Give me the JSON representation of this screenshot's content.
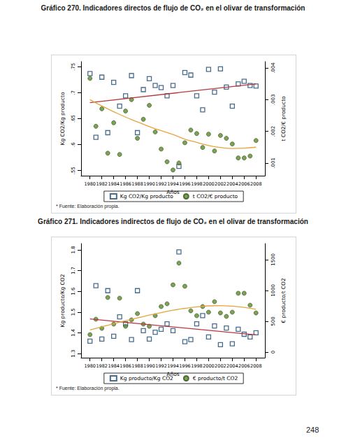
{
  "chart_data": [
    {
      "type": "scatter",
      "title": "Gráfico 270. Indicadores directos de flujo de CO₂ en el olivar de transformación",
      "note": "* Fuente: Elaboración propia.",
      "x_label": "Años",
      "y_label": "Kg CO2/Kg producto",
      "y2_label": "t CO2/€ producto",
      "x": [
        1980,
        1981,
        1982,
        1983,
        1984,
        1985,
        1986,
        1987,
        1988,
        1989,
        1990,
        1991,
        1992,
        1993,
        1994,
        1995,
        1996,
        1997,
        1998,
        1999,
        2000,
        2001,
        2002,
        2003,
        2004,
        2005,
        2006,
        2007,
        2008
      ],
      "xlim": [
        1978.5,
        2009.5
      ],
      "xticks": [
        1980,
        1982,
        1984,
        1986,
        1988,
        1990,
        1992,
        1994,
        1996,
        1998,
        2000,
        2002,
        2004,
        2006,
        2008
      ],
      "ylim": [
        0.54,
        0.76
      ],
      "yticks": [
        {
          "value": 0.55,
          "label": ".55"
        },
        {
          "value": 0.6,
          "label": ".6"
        },
        {
          "value": 0.65,
          "label": ".65"
        },
        {
          "value": 0.7,
          "label": ".7"
        },
        {
          "value": 0.75,
          "label": ".75"
        }
      ],
      "y2lim": [
        0.0006,
        0.0042
      ],
      "y2ticks": [
        {
          "value": 0.001,
          "label": ".001"
        },
        {
          "value": 0.002,
          "label": ".002"
        },
        {
          "value": 0.003,
          "label": ".003"
        },
        {
          "value": 0.004,
          "label": ".004"
        }
      ],
      "grid": false,
      "legend": "bottom",
      "series": [
        {
          "name": "Kg CO2/Kg producto",
          "color": "#1a476f",
          "marker": "hollow_square",
          "values": [
            0.737,
            0.614,
            0.73,
            0.623,
            0.72,
            0.674,
            0.694,
            0.733,
            0.623,
            0.706,
            0.727,
            0.714,
            0.71,
            0.694,
            0.714,
            0.558,
            0.739,
            0.734,
            0.694,
            0.667,
            0.745,
            0.701,
            0.746,
            0.711,
            0.674,
            0.717,
            0.722,
            0.714,
            0.713
          ]
        },
        {
          "name": "t CO2/€ producto",
          "color": "#5b8a2d",
          "marker": "circle",
          "axis": "y2",
          "values": [
            0.00367,
            0.00216,
            0.00271,
            0.00131,
            0.00227,
            0.00127,
            0.00264,
            0.003,
            0.00178,
            0.00238,
            0.00282,
            0.00198,
            0.00144,
            0.00104,
            0.00078,
            0.001,
            0.00164,
            0.00204,
            0.00193,
            0.00149,
            0.00191,
            0.00138,
            0.00187,
            0.00178,
            0.0016,
            0.00116,
            0.00116,
            0.00122,
            0.00171
          ]
        },
        {
          "type": "line",
          "color": "#b5383c",
          "marker": "none",
          "x": [
            1980,
            2008
          ],
          "values": [
            0.681,
            0.717
          ]
        },
        {
          "type": "line",
          "color": "#e8a33d",
          "marker": "none",
          "axis": "y2",
          "x": [
            1980,
            1982,
            1984,
            1986,
            1988,
            1990,
            1992,
            1994,
            1996,
            1998,
            2000,
            2002,
            2004,
            2006,
            2008
          ],
          "values": [
            0.003,
            0.0028,
            0.00262,
            0.00245,
            0.0023,
            0.00215,
            0.00202,
            0.0019,
            0.00175,
            0.00165,
            0.00155,
            0.00149,
            0.00146,
            0.00147,
            0.0015
          ]
        }
      ]
    },
    {
      "type": "scatter",
      "title": "Gráfico 271. Indicadores indirectos de flujo de CO₂ en el olivar de transformación",
      "note": "* Fuente: Elaboración propia.",
      "x_label": "Años",
      "y_label": "Kg producto/Kg CO2",
      "y2_label": "€ producto/t CO2",
      "x": [
        1980,
        1981,
        1982,
        1983,
        1984,
        1985,
        1986,
        1987,
        1988,
        1989,
        1990,
        1991,
        1992,
        1993,
        1994,
        1995,
        1996,
        1997,
        1998,
        1999,
        2000,
        2001,
        2002,
        2003,
        2004,
        2005,
        2006,
        2007,
        2008
      ],
      "xlim": [
        1978.5,
        2009.5
      ],
      "xticks": [
        1980,
        1982,
        1984,
        1986,
        1988,
        1990,
        1992,
        1994,
        1996,
        1998,
        2000,
        2002,
        2004,
        2006,
        2008
      ],
      "ylim": [
        1.28,
        1.83
      ],
      "yticks": [
        1.3,
        1.4,
        1.5,
        1.6,
        1.7,
        1.8
      ],
      "y2lim": [
        -90,
        1760
      ],
      "y2ticks": [
        0,
        500,
        1000,
        1500
      ],
      "grid": false,
      "legend": "bottom",
      "series": [
        {
          "name": "Kg producto/Kg CO2",
          "color": "#1a476f",
          "marker": "hollow_square",
          "values": [
            1.36,
            1.627,
            1.37,
            1.603,
            1.383,
            1.477,
            1.443,
            1.367,
            1.603,
            1.41,
            1.37,
            1.403,
            1.417,
            1.443,
            1.41,
            1.79,
            1.357,
            1.367,
            1.443,
            1.483,
            1.38,
            1.433,
            1.343,
            1.423,
            1.347,
            1.417,
            1.393,
            1.38,
            1.4
          ]
        },
        {
          "name": "€ producto/t CO2",
          "color": "#5b8a2d",
          "marker": "circle",
          "axis": "y2",
          "values": [
            284,
            534,
            386,
            886,
            455,
            875,
            420,
            523,
            625,
            455,
            420,
            591,
            739,
            784,
            1091,
            1443,
            1068,
            670,
            591,
            739,
            648,
            818,
            636,
            580,
            648,
            955,
            955,
            761,
            636
          ]
        },
        {
          "type": "line",
          "color": "#b5383c",
          "marker": "none",
          "x": [
            1980,
            2008
          ],
          "values": [
            1.467,
            1.39
          ]
        },
        {
          "type": "line",
          "color": "#e8a33d",
          "marker": "none",
          "axis": "y2",
          "x": [
            1980,
            1982,
            1984,
            1986,
            1988,
            1990,
            1992,
            1994,
            1996,
            1998,
            2000,
            2002,
            2004,
            2006,
            2008
          ],
          "values": [
            360,
            410,
            460,
            510,
            555,
            600,
            640,
            680,
            710,
            735,
            750,
            755,
            745,
            725,
            695
          ]
        }
      ]
    }
  ],
  "page_number": "248"
}
